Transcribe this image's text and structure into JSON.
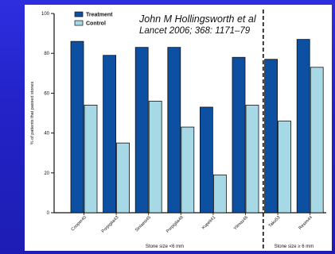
{
  "citation": {
    "author": "John M Hollingsworth et al",
    "journal": "Lancet 2006; 368: 1171–79"
  },
  "colors": {
    "background": "#2323c8",
    "treatment": "#0d4fa0",
    "control": "#a6d8e6",
    "bar_outline": "#111111"
  },
  "chart_data": {
    "type": "bar",
    "categories": [
      "Cooper40",
      "Porpiglia43",
      "Sinlaesi45",
      "Porpiglia49",
      "Kupeli41",
      "Yilmaz46",
      "Taku53",
      "Resim44"
    ],
    "series": [
      {
        "name": "Treatment",
        "values": [
          86,
          79,
          83,
          83,
          53,
          78,
          77,
          87
        ]
      },
      {
        "name": "Control",
        "values": [
          54,
          35,
          56,
          43,
          19,
          54,
          46,
          73
        ]
      }
    ],
    "groups": [
      {
        "label": "Stone size <6 mm",
        "categories": 6
      },
      {
        "label": "Stone size ≥ 6 mm",
        "categories": 2
      }
    ],
    "ylabel": "% of patients that passed stones",
    "ylim": [
      0,
      100
    ],
    "yticks": [
      "0",
      "20",
      "40",
      "60",
      "80",
      "100"
    ],
    "legend": {
      "placement": "top-left",
      "entries": [
        "Treatment",
        "Control"
      ]
    }
  }
}
